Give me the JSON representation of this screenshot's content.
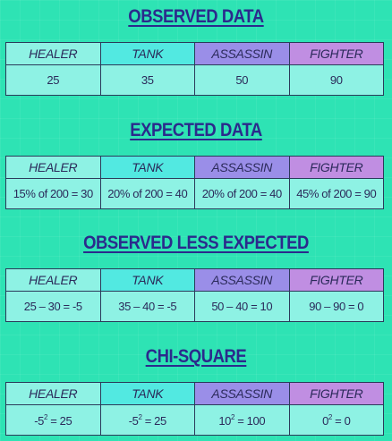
{
  "sections": [
    {
      "title": "OBSERVED DATA",
      "headers": [
        "HEALER",
        "TANK",
        "ASSASSIN",
        "FIGHTER"
      ],
      "values": [
        "25",
        "35",
        "50",
        "90"
      ]
    },
    {
      "title": "EXPECTED DATA",
      "headers": [
        "HEALER",
        "TANK",
        "ASSASSIN",
        "FIGHTER"
      ],
      "values": [
        "15% of 200 = 30",
        "20% of 200 = 40",
        "20% of 200 = 40",
        "45% of 200 = 90"
      ]
    },
    {
      "title": "OBSERVED LESS EXPECTED",
      "headers": [
        "HEALER",
        "TANK",
        "ASSASSIN",
        "FIGHTER"
      ],
      "values": [
        "25 – 30 = -5",
        "35 – 40 = -5",
        "50 – 40 = 10",
        "90 – 90 = 0"
      ]
    },
    {
      "title": "CHI-SQUARE",
      "headers": [
        "HEALER",
        "TANK",
        "ASSASSIN",
        "FIGHTER"
      ],
      "values": [
        {
          "base": "-5",
          "exp": "2",
          "result": " = 25"
        },
        {
          "base": "-5",
          "exp": "2",
          "result": " = 25"
        },
        {
          "base": "10",
          "exp": "2",
          "result": " = 100"
        },
        {
          "base": "0",
          "exp": "2",
          "result": " = 0"
        }
      ]
    }
  ],
  "colors": {
    "background": "#2ee3b4",
    "title": "#2b2a8c",
    "healer": "#8ef2e4",
    "tank": "#52e9e1",
    "assassin": "#9a8ee8",
    "fighter": "#c08ee2"
  }
}
